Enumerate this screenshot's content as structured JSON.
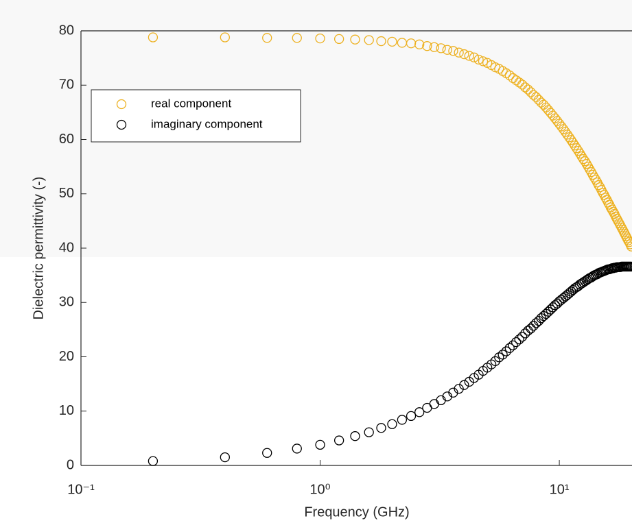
{
  "chart_data": {
    "type": "scatter",
    "x_label": "Frequency (GHz)",
    "y_label": "Dielectric permittivity (-)",
    "xscale": "log",
    "xlim": [
      0.1,
      20
    ],
    "xticks": [
      {
        "value": 0.1,
        "label": "10⁻¹"
      },
      {
        "value": 1,
        "label": "10⁰"
      },
      {
        "value": 10,
        "label": "10¹"
      }
    ],
    "ylim": [
      0,
      80
    ],
    "yticks": [
      0,
      10,
      20,
      30,
      40,
      50,
      60,
      70,
      80
    ],
    "legend": "upper left",
    "x": [
      0.2,
      0.4,
      0.6,
      0.8,
      1.0,
      1.2,
      1.4,
      1.6,
      1.8,
      2.0,
      2.2,
      2.4,
      2.6,
      2.8,
      3.0,
      3.2,
      3.4,
      3.6,
      3.8,
      4.0,
      4.2,
      4.4,
      4.6,
      4.8,
      5.0,
      5.2,
      5.4,
      5.6,
      5.8,
      6.0,
      6.2,
      6.4,
      6.6,
      6.8,
      7.0,
      7.2,
      7.4,
      7.6,
      7.8,
      8.0,
      8.2,
      8.4,
      8.6,
      8.8,
      9.0,
      9.2,
      9.4,
      9.6,
      9.8,
      10.0,
      10.2,
      10.4,
      10.6,
      10.8,
      11.0,
      11.2,
      11.4,
      11.6,
      11.8,
      12.0,
      12.2,
      12.4,
      12.6,
      12.8,
      13.0,
      13.2,
      13.4,
      13.6,
      13.8,
      14.0,
      14.2,
      14.4,
      14.6,
      14.8,
      15.0,
      15.2,
      15.4,
      15.6,
      15.8,
      16.0,
      16.2,
      16.4,
      16.6,
      16.8,
      17.0,
      17.2,
      17.4,
      17.6,
      17.8,
      18.0,
      18.2,
      18.4,
      18.6,
      18.8,
      19.0,
      19.2,
      19.4,
      19.6,
      19.8,
      20.0
    ],
    "series": [
      {
        "name": "real component",
        "color": "#EDB120",
        "values": [
          78.8,
          78.8,
          78.7,
          78.7,
          78.6,
          78.5,
          78.4,
          78.3,
          78.1,
          78.0,
          77.8,
          77.7,
          77.5,
          77.2,
          77.0,
          76.8,
          76.5,
          76.3,
          76.0,
          75.7,
          75.4,
          75.1,
          74.7,
          74.4,
          74.1,
          73.7,
          73.3,
          73.0,
          72.6,
          72.2,
          71.8,
          71.3,
          70.9,
          70.5,
          70.1,
          69.6,
          69.2,
          68.7,
          68.2,
          67.8,
          67.3,
          66.8,
          66.4,
          65.9,
          65.4,
          64.9,
          64.4,
          63.9,
          63.4,
          62.9,
          62.4,
          61.9,
          61.4,
          60.9,
          60.4,
          59.9,
          59.4,
          58.9,
          58.4,
          57.9,
          57.4,
          56.9,
          56.4,
          56.0,
          55.5,
          55.0,
          54.5,
          54.0,
          53.5,
          53.0,
          52.6,
          52.1,
          51.6,
          51.2,
          50.7,
          50.2,
          49.8,
          49.3,
          48.9,
          48.4,
          48.0,
          47.5,
          47.1,
          46.7,
          46.3,
          45.8,
          45.4,
          45.0,
          44.6,
          44.2,
          43.8,
          43.4,
          43.0,
          42.6,
          42.2,
          41.8,
          41.4,
          41.1,
          40.7,
          40.3
        ]
      },
      {
        "name": "imaginary component",
        "color": "#000000",
        "values": [
          0.8,
          1.5,
          2.3,
          3.1,
          3.8,
          4.6,
          5.4,
          6.1,
          6.9,
          7.6,
          8.4,
          9.1,
          9.8,
          10.6,
          11.3,
          12.0,
          12.7,
          13.4,
          14.1,
          14.8,
          15.4,
          16.1,
          16.7,
          17.4,
          18.0,
          18.6,
          19.2,
          19.9,
          20.4,
          21.0,
          21.6,
          22.1,
          22.7,
          23.2,
          23.7,
          24.3,
          24.8,
          25.2,
          25.7,
          26.2,
          26.6,
          27.1,
          27.5,
          27.9,
          28.3,
          28.7,
          29.1,
          29.5,
          29.8,
          30.2,
          30.5,
          30.8,
          31.1,
          31.4,
          31.7,
          32.0,
          32.3,
          32.6,
          32.8,
          33.0,
          33.3,
          33.5,
          33.7,
          33.9,
          34.1,
          34.3,
          34.5,
          34.6,
          34.8,
          35.0,
          35.1,
          35.2,
          35.4,
          35.5,
          35.6,
          35.7,
          35.8,
          35.9,
          36.0,
          36.1,
          36.1,
          36.2,
          36.3,
          36.3,
          36.4,
          36.4,
          36.5,
          36.5,
          36.5,
          36.5,
          36.6,
          36.6,
          36.6,
          36.6,
          36.6,
          36.6,
          36.6,
          36.6,
          36.6,
          36.6
        ]
      }
    ]
  }
}
